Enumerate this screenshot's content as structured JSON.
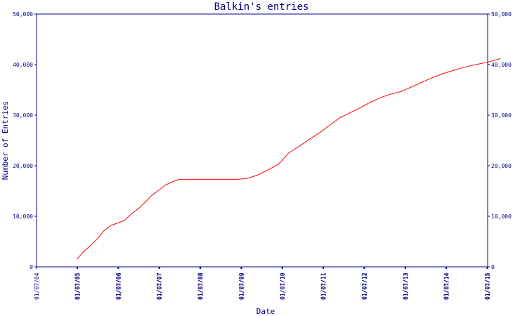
{
  "chart_data": {
    "type": "line",
    "title": "Balkin's entries",
    "xlabel": "Date",
    "ylabel": "Number of Entries",
    "xlim": [
      "2004-01-07",
      "2015-01-07"
    ],
    "ylim": [
      0,
      50000
    ],
    "y_ticks": [
      0,
      10000,
      20000,
      30000,
      40000,
      50000
    ],
    "y_tick_labels": [
      "0",
      "10,000",
      "20,000",
      "30,000",
      "40,000",
      "50,000"
    ],
    "right_y_tick_labels": [
      "0",
      "10,000",
      "20,000",
      "30,000",
      "40,000",
      "50,000"
    ],
    "x_ticks": [
      "2004-01-07",
      "2005-01-01",
      "2005-01-07",
      "2006-01-01",
      "2006-01-07",
      "2007-01-01",
      "2007-01-07",
      "2008-01-01",
      "2008-01-07",
      "2009-01-01",
      "2009-01-07",
      "2010-01-01",
      "2010-01-07",
      "2011-01-01",
      "2011-01-07",
      "2012-01-01",
      "2012-01-07",
      "2013-01-01",
      "2013-01-07",
      "2014-01-01",
      "2014-01-07",
      "2015-01-01",
      "2015-01-07"
    ],
    "x_tick_labels": [
      "01/07/04",
      "01/01/05",
      "01/07/05",
      "01/01/06",
      "01/07/06",
      "01/01/07",
      "01/07/07",
      "01/01/08",
      "01/07/08",
      "01/01/09",
      "01/07/09",
      "01/01/10",
      "01/07/10",
      "01/01/11",
      "01/07/11",
      "01/01/12",
      "01/07/12",
      "01/01/13",
      "01/07/13",
      "01/01/14",
      "01/07/14",
      "01/01/15",
      "01/07/15"
    ],
    "grid": false,
    "colors": {
      "line": "#ff0000",
      "axes": "#000080",
      "text": "#000080"
    },
    "series": [
      {
        "x": [
          "2005-01-01",
          "2005-03-01",
          "2005-05-01",
          "2005-07-01",
          "2005-09-01",
          "2005-11-01",
          "2006-01-01",
          "2006-03-01",
          "2006-05-01",
          "2006-07-01",
          "2006-09-01",
          "2006-11-01",
          "2007-01-01",
          "2007-03-01",
          "2007-05-01",
          "2007-07-01",
          "2007-09-01",
          "2007-12-01",
          "2008-03-01",
          "2008-06-01",
          "2008-09-01",
          "2008-12-01",
          "2009-03-01",
          "2009-06-01",
          "2009-09-01",
          "2009-12-01",
          "2010-03-01",
          "2010-06-01",
          "2010-09-01",
          "2010-12-01",
          "2011-03-01",
          "2011-06-01",
          "2011-09-01",
          "2011-12-01",
          "2012-03-01",
          "2012-06-01",
          "2012-09-01",
          "2012-12-01",
          "2013-03-01",
          "2013-06-01",
          "2013-09-01",
          "2013-12-01",
          "2014-03-01",
          "2014-06-01",
          "2014-09-01",
          "2014-12-01",
          "2015-03-01",
          "2015-05-01"
        ],
        "values": [
          1500,
          3000,
          4200,
          5500,
          7200,
          8200,
          8700,
          9200,
          10500,
          11500,
          12800,
          14200,
          15200,
          16200,
          16800,
          17300,
          17300,
          17300,
          17300,
          17300,
          17300,
          17300,
          17500,
          18200,
          19200,
          20300,
          22500,
          23800,
          25200,
          26500,
          28000,
          29500,
          30500,
          31500,
          32600,
          33500,
          34200,
          34700,
          35600,
          36500,
          37400,
          38200,
          38800,
          39400,
          39900,
          40300,
          40800,
          41200
        ]
      }
    ]
  }
}
